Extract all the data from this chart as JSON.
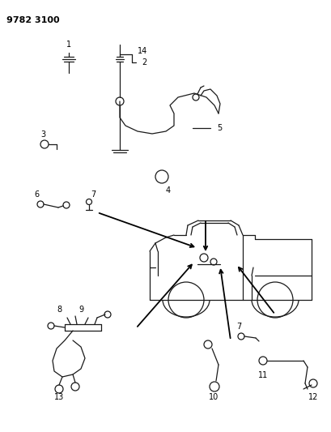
{
  "title": "9782 3100",
  "bg_color": "#ffffff",
  "line_color": "#1a1a1a",
  "label_color": "#000000",
  "figsize": [
    4.1,
    5.33
  ],
  "dpi": 100
}
